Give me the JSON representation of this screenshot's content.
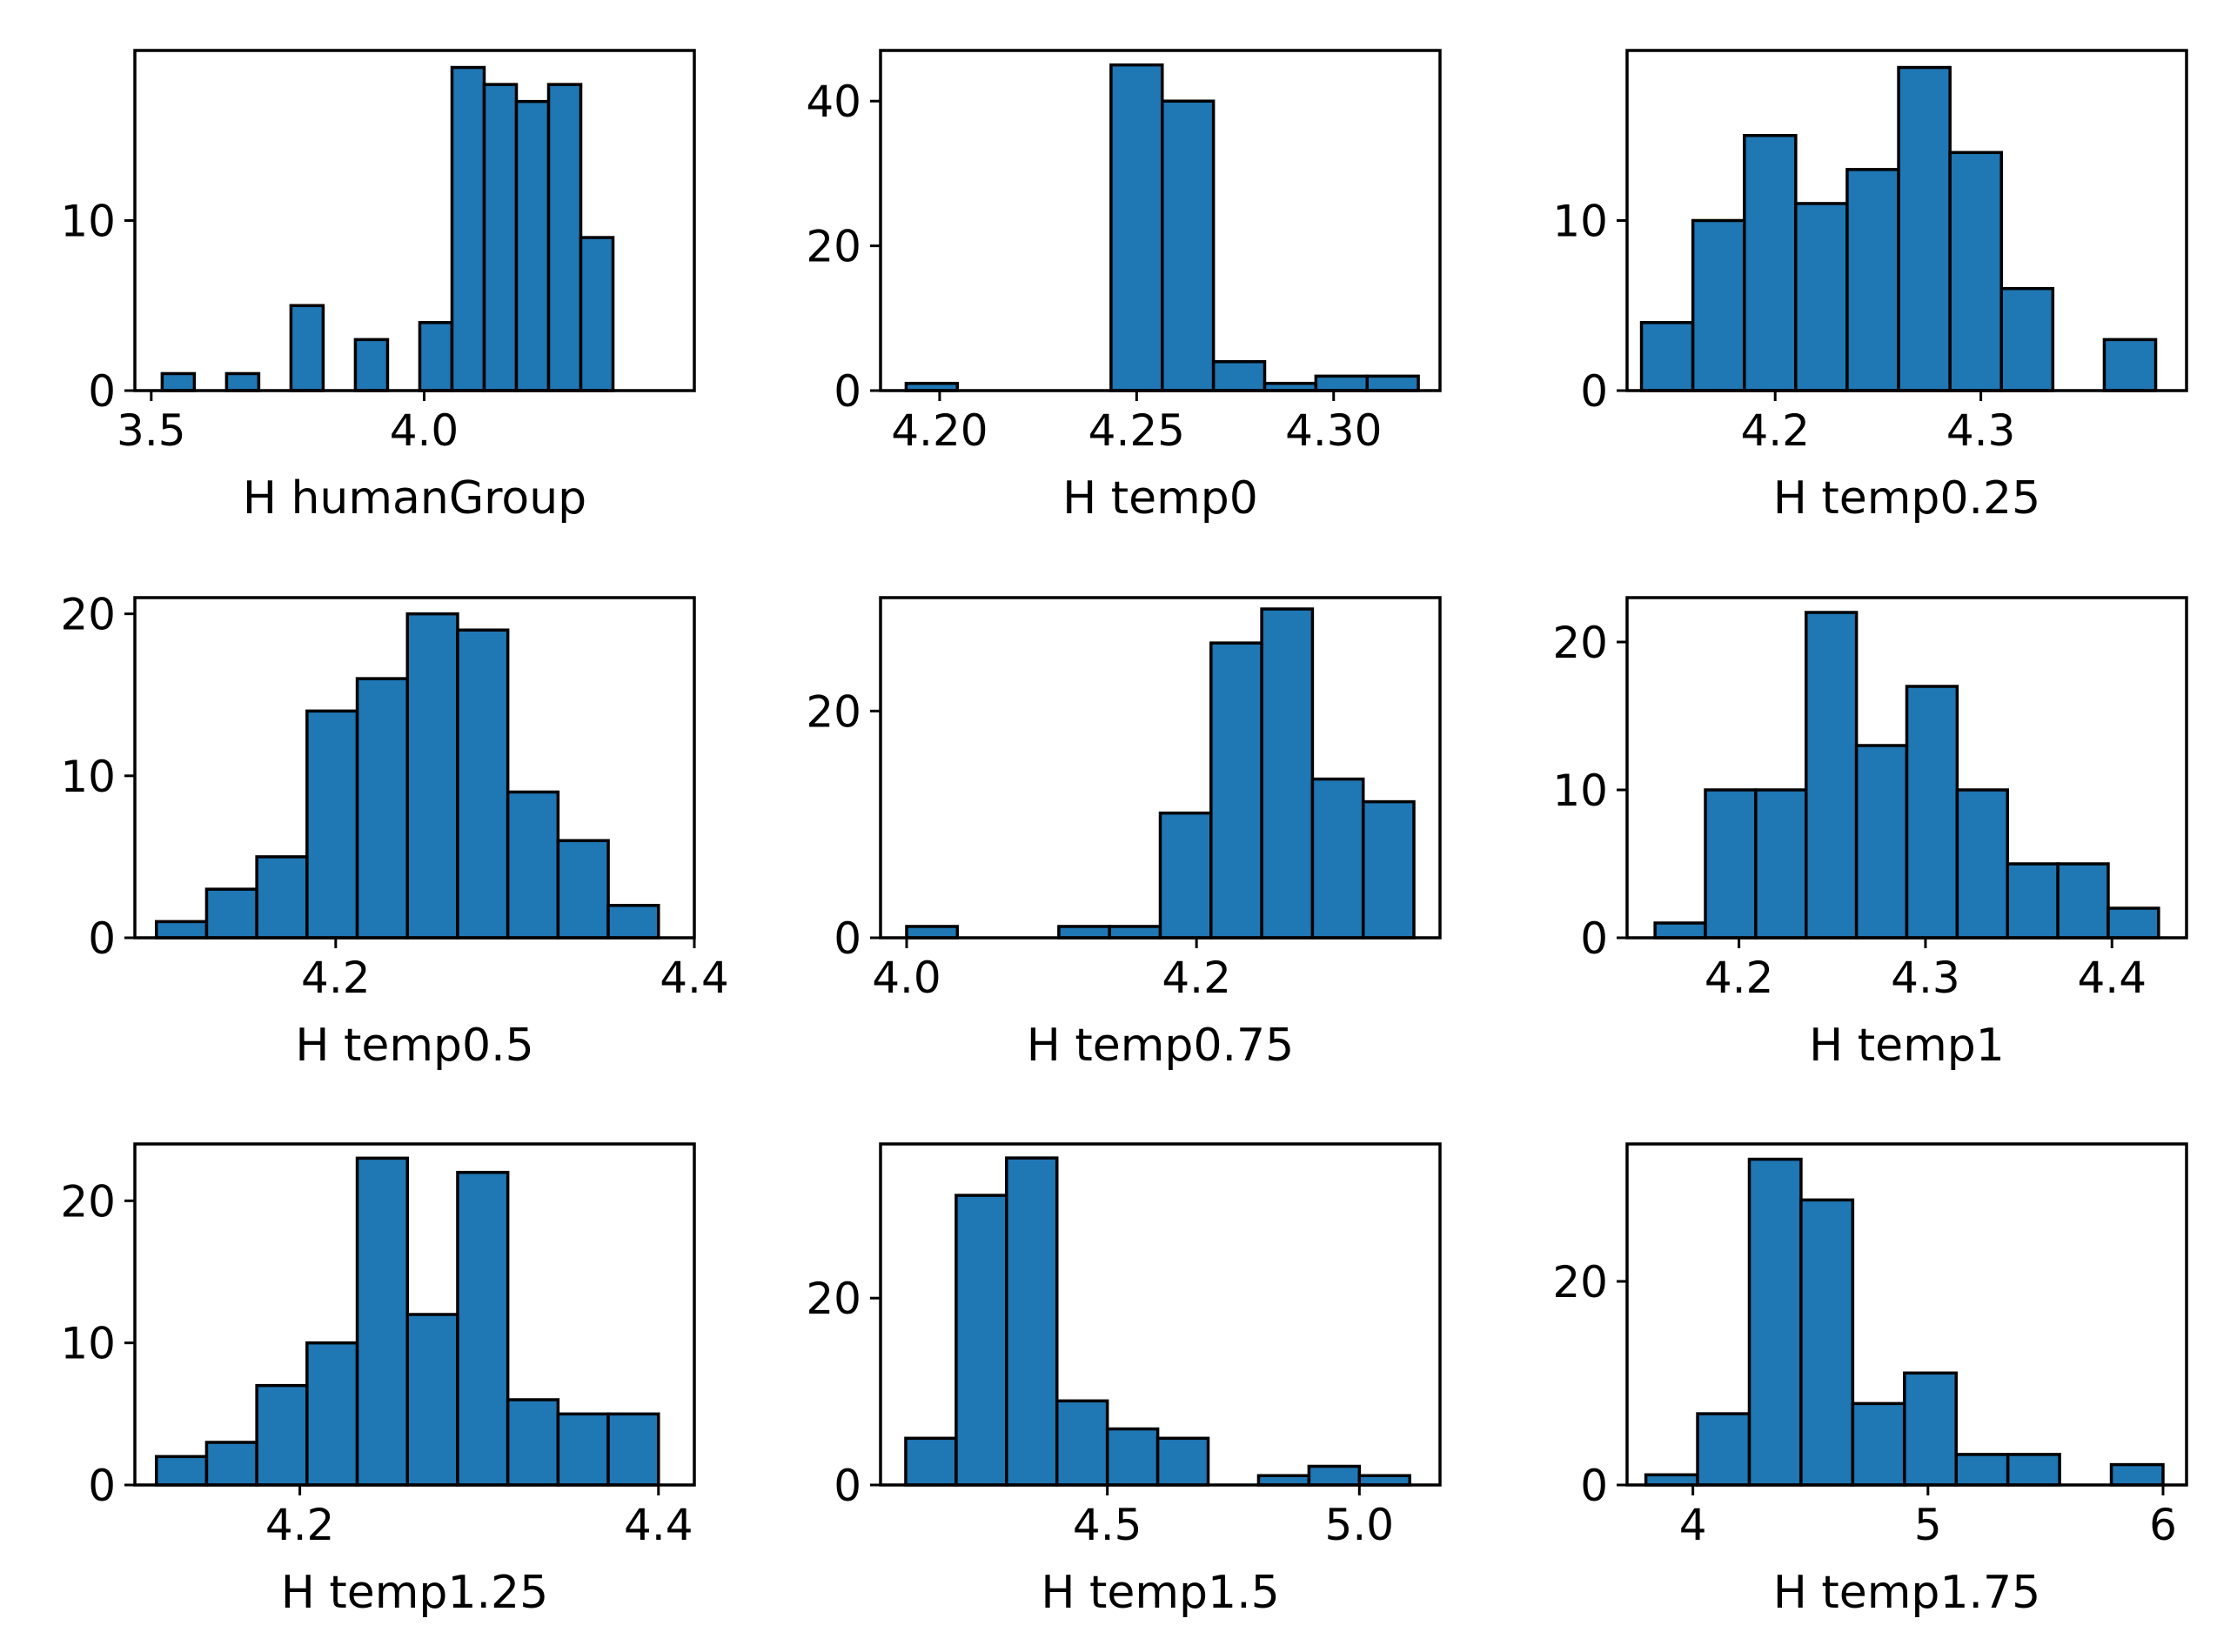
{
  "figure": {
    "background": "#ffffff",
    "bar_color": "#1f77b4",
    "edge_color": "#000000"
  },
  "chart_data": [
    {
      "type": "bar",
      "xlabel": "H humanGroup",
      "bins": [
        3.52,
        3.579,
        3.638,
        3.697,
        3.756,
        3.815,
        3.874,
        3.933,
        3.992,
        4.051,
        4.11,
        4.169,
        4.228,
        4.287,
        4.346,
        4.405,
        4.464
      ],
      "counts": [
        1,
        0,
        1,
        0,
        5,
        0,
        3,
        0,
        4,
        19,
        18,
        17,
        18,
        9,
        0,
        0
      ],
      "xlim": [
        3.47,
        4.495
      ],
      "ylim": [
        0,
        20
      ],
      "xticks": [
        3.5,
        4.0
      ],
      "xtick_labels": [
        "3.5",
        "4.0"
      ],
      "yticks": [
        0,
        10
      ],
      "ytick_labels": [
        "0",
        "10"
      ]
    },
    {
      "type": "bar",
      "xlabel": "H temp0",
      "bins": [
        4.1915,
        4.2045,
        4.2175,
        4.2305,
        4.2435,
        4.2565,
        4.2695,
        4.2825,
        4.2955,
        4.3085,
        4.3215
      ],
      "counts": [
        1,
        0,
        0,
        0,
        45,
        40,
        4,
        1,
        2,
        2
      ],
      "xlim": [
        4.185,
        4.327
      ],
      "ylim": [
        0,
        47
      ],
      "xticks": [
        4.2,
        4.25,
        4.3
      ],
      "xtick_labels": [
        "4.20",
        "4.25",
        "4.30"
      ],
      "yticks": [
        0,
        20,
        40
      ],
      "ytick_labels": [
        "0",
        "20",
        "40"
      ]
    },
    {
      "type": "bar",
      "xlabel": "H temp0.25",
      "bins": [
        4.135,
        4.16,
        4.185,
        4.21,
        4.235,
        4.26,
        4.285,
        4.31,
        4.335,
        4.36,
        4.385
      ],
      "counts": [
        4,
        10,
        15,
        11,
        13,
        19,
        14,
        6,
        0,
        3
      ],
      "xlim": [
        4.128,
        4.4
      ],
      "ylim": [
        0,
        20
      ],
      "xticks": [
        4.2,
        4.3
      ],
      "xtick_labels": [
        "4.2",
        "4.3"
      ],
      "yticks": [
        0,
        10
      ],
      "ytick_labels": [
        "0",
        "10"
      ]
    },
    {
      "type": "bar",
      "xlabel": "H temp0.5",
      "bins": [
        4.1,
        4.128,
        4.156,
        4.184,
        4.212,
        4.24,
        4.268,
        4.296,
        4.324,
        4.352,
        4.38
      ],
      "counts": [
        1,
        3,
        5,
        14,
        16,
        20,
        19,
        9,
        6,
        2
      ],
      "xlim": [
        4.088,
        4.4
      ],
      "ylim": [
        0,
        21
      ],
      "xticks": [
        4.2,
        4.4
      ],
      "xtick_labels": [
        "4.2",
        "4.4"
      ],
      "yticks": [
        0,
        10,
        20
      ],
      "ytick_labels": [
        "0",
        "10",
        "20"
      ]
    },
    {
      "type": "bar",
      "xlabel": "H temp0.75",
      "bins": [
        4.0,
        4.035,
        4.07,
        4.105,
        4.14,
        4.175,
        4.21,
        4.245,
        4.28,
        4.315,
        4.35
      ],
      "counts": [
        1,
        0,
        0,
        1,
        1,
        11,
        26,
        29,
        14,
        12
      ],
      "xlim": [
        3.982,
        4.368
      ],
      "ylim": [
        0,
        30
      ],
      "xticks": [
        4.0,
        4.2
      ],
      "xtick_labels": [
        "4.0",
        "4.2"
      ],
      "yticks": [
        0,
        20
      ],
      "ytick_labels": [
        "0",
        "20"
      ]
    },
    {
      "type": "bar",
      "xlabel": "H temp1",
      "bins": [
        4.155,
        4.182,
        4.209,
        4.236,
        4.263,
        4.29,
        4.317,
        4.344,
        4.371,
        4.398,
        4.425
      ],
      "counts": [
        1,
        10,
        10,
        22,
        13,
        17,
        10,
        5,
        5,
        2
      ],
      "xlim": [
        4.14,
        4.44
      ],
      "ylim": [
        0,
        23
      ],
      "xticks": [
        4.2,
        4.3,
        4.4
      ],
      "xtick_labels": [
        "4.2",
        "4.3",
        "4.4"
      ],
      "yticks": [
        0,
        10,
        20
      ],
      "ytick_labels": [
        "0",
        "10",
        "20"
      ]
    },
    {
      "type": "bar",
      "xlabel": "H temp1.25",
      "bins": [
        4.12,
        4.148,
        4.176,
        4.204,
        4.232,
        4.26,
        4.288,
        4.316,
        4.344,
        4.372,
        4.4
      ],
      "counts": [
        2,
        3,
        7,
        10,
        23,
        12,
        22,
        6,
        5,
        5
      ],
      "xlim": [
        4.108,
        4.42
      ],
      "ylim": [
        0,
        24
      ],
      "xticks": [
        4.2,
        4.4
      ],
      "xtick_labels": [
        "4.2",
        "4.4"
      ],
      "yticks": [
        0,
        10,
        20
      ],
      "ytick_labels": [
        "0",
        "10",
        "20"
      ]
    },
    {
      "type": "bar",
      "xlabel": "H temp1.5",
      "bins": [
        4.1,
        4.2,
        4.3,
        4.4,
        4.5,
        4.6,
        4.7,
        4.8,
        4.9,
        5.0,
        5.1
      ],
      "counts": [
        5,
        31,
        35,
        9,
        6,
        5,
        0,
        1,
        2,
        1
      ],
      "xlim": [
        4.05,
        5.16
      ],
      "ylim": [
        0,
        36.5
      ],
      "xticks": [
        4.5,
        5.0
      ],
      "xtick_labels": [
        "4.5",
        "5.0"
      ],
      "yticks": [
        0,
        20
      ],
      "ytick_labels": [
        "0",
        "20"
      ]
    },
    {
      "type": "bar",
      "xlabel": "H temp1.75",
      "bins": [
        3.8,
        4.02,
        4.24,
        4.46,
        4.68,
        4.9,
        5.12,
        5.34,
        5.56,
        5.78,
        6.0
      ],
      "counts": [
        1,
        7,
        32,
        28,
        8,
        11,
        3,
        3,
        0,
        2
      ],
      "xlim": [
        3.72,
        6.1
      ],
      "ylim": [
        0,
        33.5
      ],
      "xticks": [
        4,
        5,
        6
      ],
      "xtick_labels": [
        "4",
        "5",
        "6"
      ],
      "yticks": [
        0,
        20
      ],
      "ytick_labels": [
        "0",
        "20"
      ]
    }
  ]
}
